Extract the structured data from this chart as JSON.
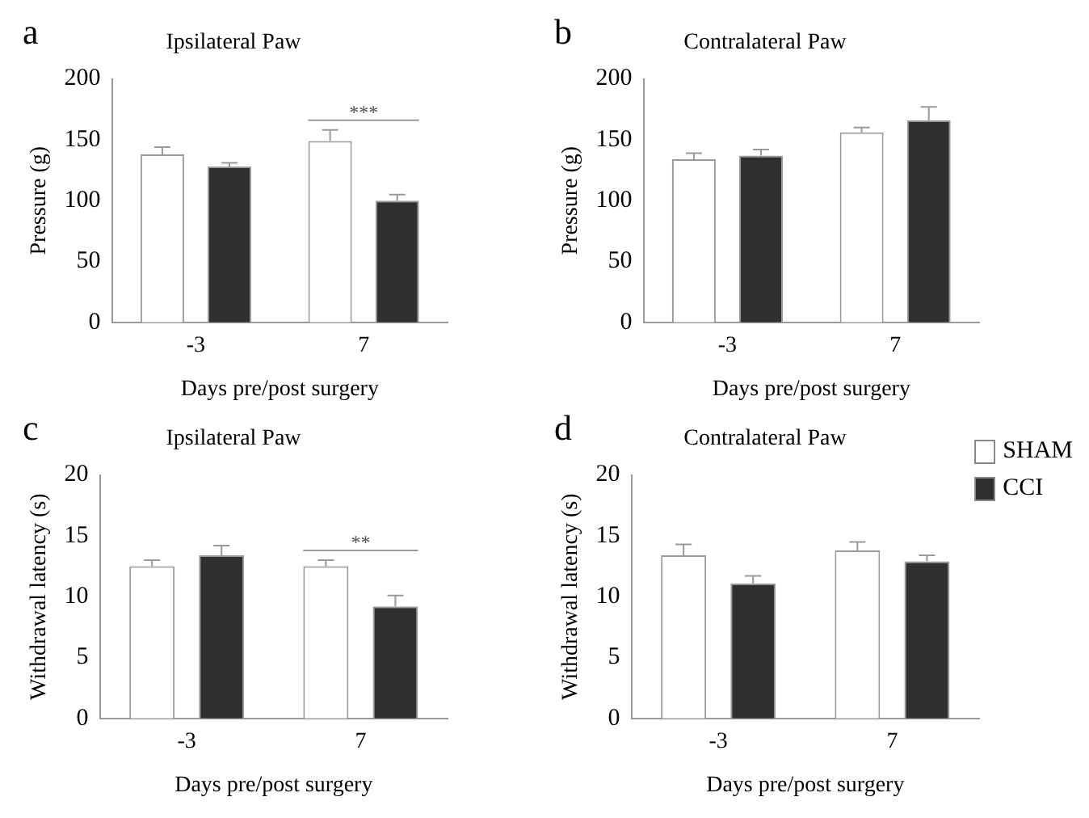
{
  "chart_data": [
    {
      "type": "bar",
      "title": "Ipsilateral Paw",
      "xlabel": "Days pre/post surgery",
      "ylabel": "Pressure (g)",
      "categories": [
        "-3",
        "7"
      ],
      "series": [
        {
          "color": "#ffffff",
          "values": [
            138,
            149
          ],
          "errors": [
            [
              138,
              144
            ],
            [
              149,
              158
            ]
          ]
        },
        {
          "color": "#2f2f2f",
          "values": [
            128,
            100
          ],
          "errors": [
            [
              128,
              131
            ],
            [
              100,
              105
            ]
          ]
        }
      ],
      "ylim": [
        0,
        200
      ],
      "yticks": [
        0,
        50,
        100,
        150,
        200
      ],
      "grid": false,
      "legend": false,
      "annotations": [
        "a",
        "***"
      ]
    },
    {
      "type": "bar",
      "title": "Contralateral Paw",
      "xlabel": "Days pre/post surgery",
      "ylabel": "Pressure (g)",
      "categories": [
        "-3",
        "7"
      ],
      "series": [
        {
          "color": "#ffffff",
          "values": [
            134,
            156
          ],
          "errors": [
            [
              134,
              139
            ],
            [
              156,
              160
            ]
          ]
        },
        {
          "color": "#2f2f2f",
          "values": [
            137,
            166
          ],
          "errors": [
            [
              137,
              142
            ],
            [
              166,
              177
            ]
          ]
        }
      ],
      "ylim": [
        0,
        200
      ],
      "yticks": [
        0,
        50,
        100,
        150,
        200
      ],
      "grid": false,
      "legend": false,
      "annotations": [
        "b"
      ]
    },
    {
      "type": "bar",
      "title": "Ipsilateral Paw",
      "xlabel": "Days pre/post surgery",
      "ylabel": "Withdrawal latency (s)",
      "categories": [
        "-3",
        "7"
      ],
      "series": [
        {
          "color": "#ffffff",
          "values": [
            12.5,
            12.5
          ],
          "errors": [
            [
              12.5,
              13.0
            ],
            [
              12.5,
              13.0
            ]
          ]
        },
        {
          "color": "#2f2f2f",
          "values": [
            13.4,
            9.2
          ],
          "errors": [
            [
              13.4,
              14.2
            ],
            [
              9.2,
              10.1
            ]
          ]
        }
      ],
      "ylim": [
        0,
        20
      ],
      "yticks": [
        0,
        5,
        10,
        15,
        20
      ],
      "grid": false,
      "legend": false,
      "annotations": [
        "c",
        "**"
      ]
    },
    {
      "type": "bar",
      "title": "Contralateral Paw",
      "xlabel": "Days pre/post surgery",
      "ylabel": "Withdrawal latency (s)",
      "categories": [
        "-3",
        "7"
      ],
      "series": [
        {
          "name": "SHAM",
          "color": "#ffffff",
          "values": [
            13.4,
            13.8
          ],
          "errors": [
            [
              13.4,
              14.3
            ],
            [
              13.8,
              14.5
            ]
          ]
        },
        {
          "name": "CCI",
          "color": "#2f2f2f",
          "values": [
            11.1,
            12.9
          ],
          "errors": [
            [
              11.1,
              11.7
            ],
            [
              12.9,
              13.4
            ]
          ]
        }
      ],
      "ylim": [
        0,
        20
      ],
      "yticks": [
        0,
        5,
        10,
        15,
        20
      ],
      "grid": false,
      "legend": "top right",
      "annotations": [
        "d"
      ]
    }
  ]
}
